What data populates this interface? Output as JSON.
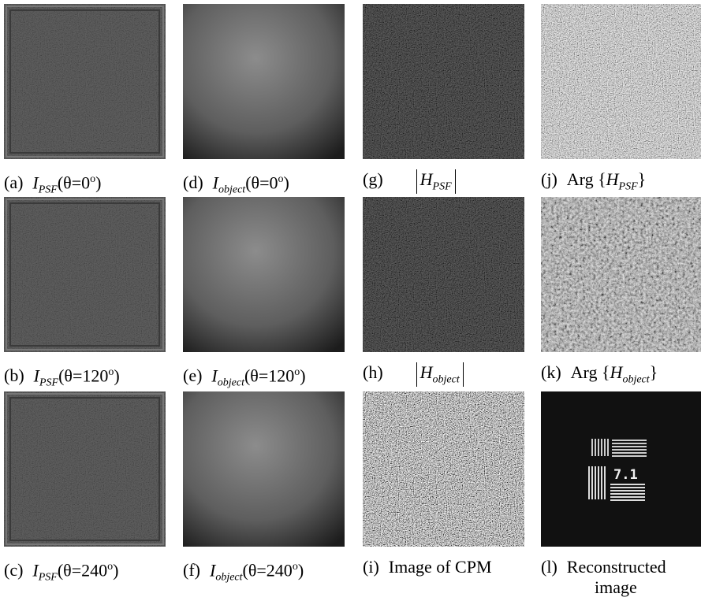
{
  "panels": [
    {
      "label": "(a)",
      "symbol": "I",
      "sub": "PSF",
      "arg": "(θ=0",
      "sup": "o",
      "close": ")"
    },
    {
      "label": "(b)",
      "symbol": "I",
      "sub": "PSF",
      "arg": "(θ=120",
      "sup": "o",
      "close": ")"
    },
    {
      "label": "(c)",
      "symbol": "I",
      "sub": "PSF",
      "arg": "(θ=240",
      "sup": "o",
      "close": ")"
    },
    {
      "label": "(d)",
      "symbol": "I",
      "sub": "object",
      "arg": "(θ=0",
      "sup": "o",
      "close": ")"
    },
    {
      "label": "(e)",
      "symbol": "I",
      "sub": "object",
      "arg": "(θ=120",
      "sup": "o",
      "close": ")"
    },
    {
      "label": "(f)",
      "symbol": "I",
      "sub": "object",
      "arg": "(θ=240",
      "sup": "o",
      "close": ")"
    },
    {
      "label": "(g)",
      "symbol": "H",
      "sub": "PSF",
      "abs": true
    },
    {
      "label": "(h)",
      "symbol": "H",
      "sub": "object",
      "abs": true
    },
    {
      "label": "(i)",
      "text": "Image of CPM"
    },
    {
      "label": "(j)",
      "prefix": "Arg",
      "open": "{",
      "symbol": "H",
      "sub": "PSF",
      "close": "}"
    },
    {
      "label": "(k)",
      "prefix": "Arg",
      "open": "{",
      "symbol": "H",
      "sub": "object",
      "close": "}"
    },
    {
      "label": "(l)",
      "text": "Reconstructed",
      "text2": "image",
      "inset_text": "7.1"
    }
  ]
}
